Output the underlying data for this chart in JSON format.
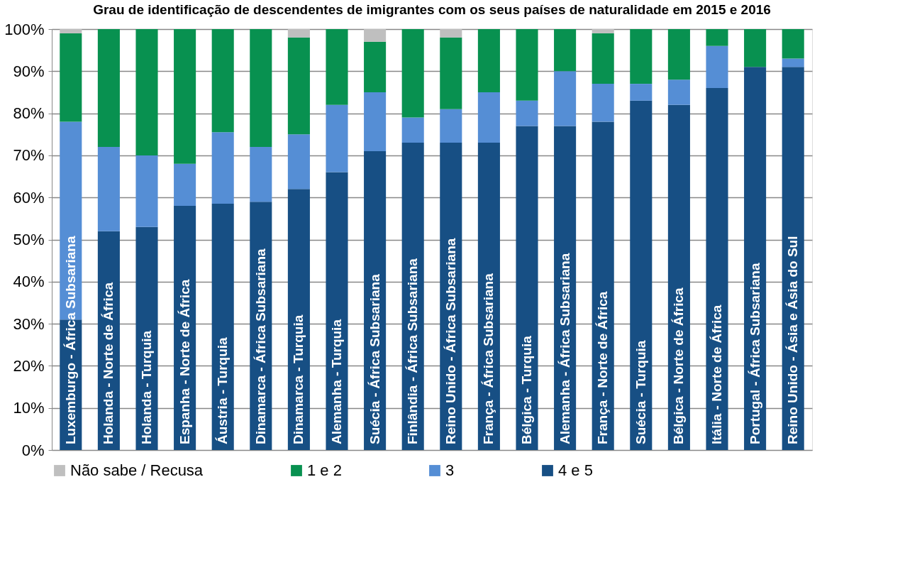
{
  "chart_data": {
    "type": "bar",
    "stacked": true,
    "title": "Grau de identificação de descendentes de imigrantes com os seus países de naturalidade em 2015 e 2016",
    "categories": [
      "Luxemburgo - África Subsariana",
      "Holanda - Norte de África",
      "Holanda - Turquia",
      "Espanha - Norte de África",
      "Áustria - Turquia",
      "Dinamarca - África Subsariana",
      "Dinamarca - Turquia",
      "Alemanha - Turquia",
      "Suécia - África Subsariana",
      "Finlândia - África Subsariana",
      "Reino Unido - África Subsariana",
      "França - África Subsariana",
      "Bélgica - Turquia",
      "Alemanha - África Subsariana",
      "França - Norte de África",
      "Suécia - Turquia",
      "Bélgica - Norte de África",
      "Itália - Norte de África",
      "Portugal - África Subsariana",
      "Reino Unido - Ásia e Ásia do Sul"
    ],
    "series": [
      {
        "name": "4 e 5",
        "color": "#174f84",
        "values": [
          31,
          52,
          53,
          58,
          58.5,
          59,
          62,
          66,
          71,
          73,
          73,
          73,
          77,
          77,
          78,
          83,
          82,
          86,
          91,
          91
        ]
      },
      {
        "name": "3",
        "color": "#558ed5",
        "values": [
          47,
          20,
          17,
          10,
          17,
          13,
          13,
          16,
          14,
          6,
          8,
          12,
          6,
          13,
          9,
          4,
          6,
          10,
          0,
          2
        ]
      },
      {
        "name": "1 e 2",
        "color": "#089150",
        "values": [
          21,
          28,
          30,
          32,
          24.5,
          28,
          23,
          18,
          12,
          21,
          17,
          15,
          17,
          10,
          12,
          13,
          12,
          4,
          9,
          7
        ]
      },
      {
        "name": "Não sabe / Recusa",
        "color": "#bfbfbf",
        "values": [
          1,
          0,
          0,
          0,
          0,
          0,
          2,
          0,
          3,
          0,
          2,
          0,
          0,
          0,
          1,
          0,
          0,
          0,
          0,
          0
        ]
      }
    ],
    "ylim": [
      0,
      100
    ],
    "yticks": [
      {
        "value": 0,
        "label": "0%"
      },
      {
        "value": 10,
        "label": "10%"
      },
      {
        "value": 20,
        "label": "20%"
      },
      {
        "value": 30,
        "label": "30%"
      },
      {
        "value": 40,
        "label": "40%"
      },
      {
        "value": 50,
        "label": "50%"
      },
      {
        "value": 60,
        "label": "60%"
      },
      {
        "value": 70,
        "label": "70%"
      },
      {
        "value": 80,
        "label": "80%"
      },
      {
        "value": 90,
        "label": "90%"
      },
      {
        "value": 100,
        "label": "100%"
      }
    ],
    "grid": "y",
    "legend": "bottom",
    "tick_labels": "y"
  }
}
